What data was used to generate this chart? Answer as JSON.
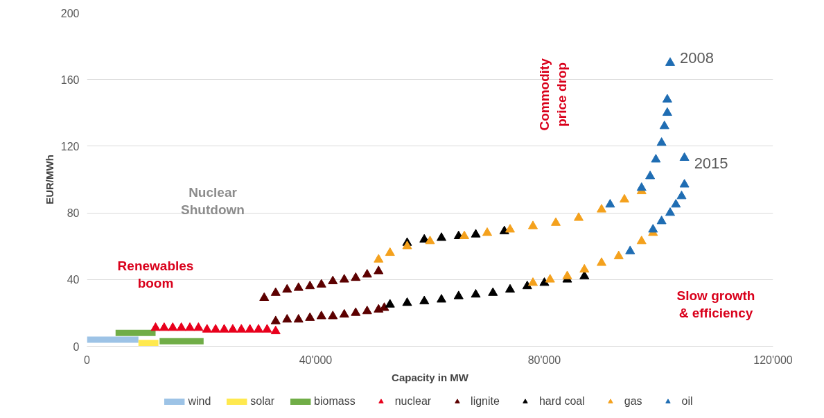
{
  "chart_data": {
    "type": "scatter",
    "xlabel": "Capacity in MW",
    "ylabel": "EUR/MWh",
    "xlim": [
      0,
      120000
    ],
    "xticks": [
      {
        "value": 0,
        "label": "0"
      },
      {
        "value": 40000,
        "label": "40'000"
      },
      {
        "value": 80000,
        "label": "80'000"
      },
      {
        "value": 120000,
        "label": "120'000"
      }
    ],
    "ylim": [
      0,
      200
    ],
    "yticks": [
      0,
      40,
      80,
      120,
      160,
      200
    ],
    "grid": "y",
    "legend": "bottom",
    "annotations": [
      {
        "text": "2008",
        "x": 102000,
        "y": 170
      },
      {
        "text": "2015",
        "x": 104500,
        "y": 113
      },
      "Nuclear Shutdown",
      "Renewables boom",
      "Commodity price drop",
      "Slow growth & efficiency"
    ],
    "series": [
      {
        "name": "wind",
        "type": "line",
        "color": "#9dc3e6",
        "x": [
          0,
          9000
        ],
        "values": [
          4,
          4
        ]
      },
      {
        "name": "solar",
        "type": "line",
        "color": "#ffe94f",
        "x": [
          9000,
          12500
        ],
        "values": [
          2,
          2
        ]
      },
      {
        "name": "biomass",
        "type": "line",
        "color": "#70ad47",
        "x": [
          5000,
          12000,
          12400,
          12700,
          20400
        ],
        "values": [
          8,
          8,
          null,
          3,
          3
        ]
      },
      {
        "name": "nuclear",
        "marker": "triangle",
        "color": "#e8001c",
        "x": [
          12000,
          13500,
          15000,
          16500,
          18000,
          19500,
          21000,
          22500,
          24000,
          25500,
          27000,
          28500,
          30000,
          31500,
          33000
        ],
        "values": [
          11,
          11,
          11,
          11,
          11,
          11,
          10,
          10,
          10,
          10,
          10,
          10,
          10,
          10,
          9
        ]
      },
      {
        "name": "lignite",
        "marker": "triangle",
        "color": "#5c0000",
        "x": [
          31000,
          33000,
          35000,
          37000,
          39000,
          41000,
          43000,
          45000,
          47000,
          49000,
          51000,
          33000,
          35000,
          37000,
          39000,
          41000,
          43000,
          45000,
          47000,
          49000,
          51000,
          52000
        ],
        "values": [
          29,
          32,
          34,
          35,
          36,
          37,
          39,
          40,
          41,
          43,
          45,
          15,
          16,
          16,
          17,
          18,
          18,
          19,
          20,
          21,
          22,
          23
        ]
      },
      {
        "name": "hard coal",
        "marker": "triangle",
        "color": "#000000",
        "x": [
          53000,
          56000,
          59000,
          62000,
          65000,
          68000,
          71000,
          74000,
          77000,
          80000,
          84000,
          87000,
          56000,
          59000,
          62000,
          65000,
          68000,
          73000
        ],
        "values": [
          25,
          26,
          27,
          28,
          30,
          31,
          32,
          34,
          36,
          38,
          40,
          42,
          62,
          64,
          65,
          66,
          67,
          69
        ]
      },
      {
        "name": "gas",
        "marker": "triangle",
        "color": "#f4a11d",
        "x": [
          51000,
          53000,
          56000,
          60000,
          66000,
          70000,
          74000,
          78000,
          82000,
          86000,
          90000,
          94000,
          97000,
          78000,
          81000,
          84000,
          87000,
          90000,
          93000,
          95000,
          97000,
          99000
        ],
        "values": [
          52,
          56,
          60,
          63,
          66,
          68,
          70,
          72,
          74,
          77,
          82,
          88,
          93,
          38,
          40,
          42,
          46,
          50,
          54,
          null,
          63,
          68
        ]
      },
      {
        "name": "oil",
        "marker": "triangle",
        "color": "#1f6db3",
        "x": [
          91500,
          97000,
          98500,
          99500,
          100500,
          101000,
          101500,
          101500,
          102000,
          95000,
          99000,
          100500,
          102000,
          103000,
          104000,
          104500,
          104500
        ],
        "values": [
          85,
          95,
          102,
          112,
          122,
          132,
          140,
          148,
          170,
          57,
          70,
          75,
          80,
          85,
          90,
          97,
          113
        ]
      }
    ]
  }
}
